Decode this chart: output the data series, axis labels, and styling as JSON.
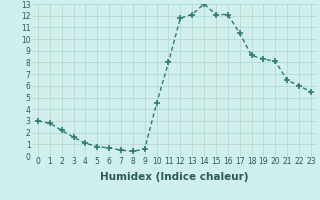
{
  "x": [
    0,
    1,
    2,
    3,
    4,
    5,
    6,
    7,
    8,
    9,
    10,
    11,
    12,
    13,
    14,
    15,
    16,
    17,
    18,
    19,
    20,
    21,
    22,
    23
  ],
  "y": [
    3.0,
    2.8,
    2.2,
    1.6,
    1.1,
    0.8,
    0.7,
    0.5,
    0.4,
    0.6,
    4.5,
    8.0,
    11.8,
    12.1,
    13.0,
    12.1,
    12.1,
    10.5,
    8.6,
    8.3,
    8.1,
    6.5,
    6.0,
    5.5
  ],
  "line_color": "#2d7d6e",
  "marker": "+",
  "marker_size": 4,
  "marker_linewidth": 1.2,
  "bg_color": "#cff0ec",
  "grid_major_color": "#b8d8d4",
  "grid_minor_color": "#daecea",
  "xlabel": "Humidex (Indice chaleur)",
  "ylim": [
    0,
    13
  ],
  "xlim": [
    -0.5,
    23.5
  ],
  "xticks": [
    0,
    1,
    2,
    3,
    4,
    5,
    6,
    7,
    8,
    9,
    10,
    11,
    12,
    13,
    14,
    15,
    16,
    17,
    18,
    19,
    20,
    21,
    22,
    23
  ],
  "yticks": [
    0,
    1,
    2,
    3,
    4,
    5,
    6,
    7,
    8,
    9,
    10,
    11,
    12,
    13
  ],
  "tick_fontsize": 5.5,
  "label_fontsize": 7.5,
  "linewidth": 1.0
}
